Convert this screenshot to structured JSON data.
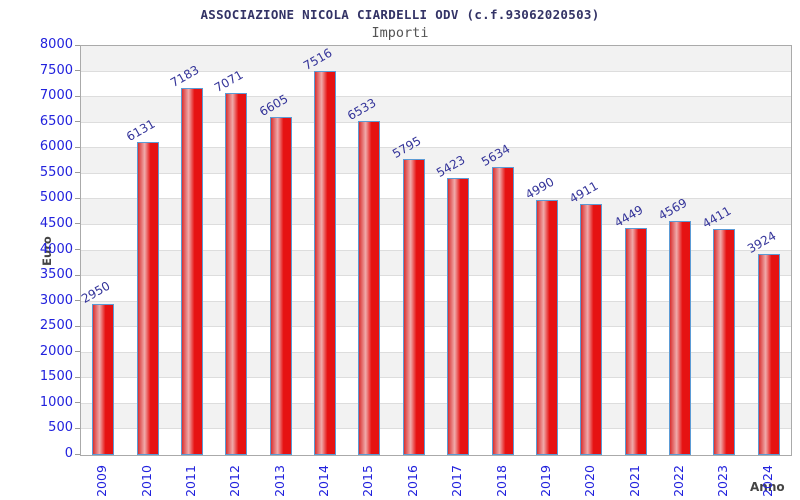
{
  "chart_data": {
    "type": "bar",
    "title": "ASSOCIAZIONE NICOLA CIARDELLI ODV (c.f.93062020503)",
    "subtitle": "Importi",
    "xlabel": "Anno",
    "ylabel": "Euro",
    "categories": [
      "2009",
      "2010",
      "2011",
      "2012",
      "2013",
      "2014",
      "2015",
      "2016",
      "2017",
      "2018",
      "2019",
      "2020",
      "2021",
      "2022",
      "2023",
      "2024"
    ],
    "values": [
      2950,
      6131,
      7183,
      7071,
      6605,
      7516,
      6533,
      5795,
      5423,
      5634,
      4990,
      4911,
      4449,
      4569,
      4411,
      3924
    ],
    "ylim": [
      0,
      8000
    ],
    "ytick_step": 500,
    "grid": "horizontal-bands",
    "legend": "none",
    "value_labels_rotation_deg": -30,
    "x_tick_rotation_deg": -90,
    "colors": {
      "bar_fill": "#e61212",
      "bar_fill_light": "#f0abab",
      "bar_fill_edge": "#d93030",
      "bar_border": "#5b9bd5",
      "axis_tick_label": "#2222dd",
      "value_label": "#333399",
      "title": "#333366",
      "subtitle": "#555555",
      "axis_title": "#444444",
      "band": "#f2f2f2",
      "gridline": "#dddddd",
      "plot_border": "#aaaaaa"
    }
  }
}
